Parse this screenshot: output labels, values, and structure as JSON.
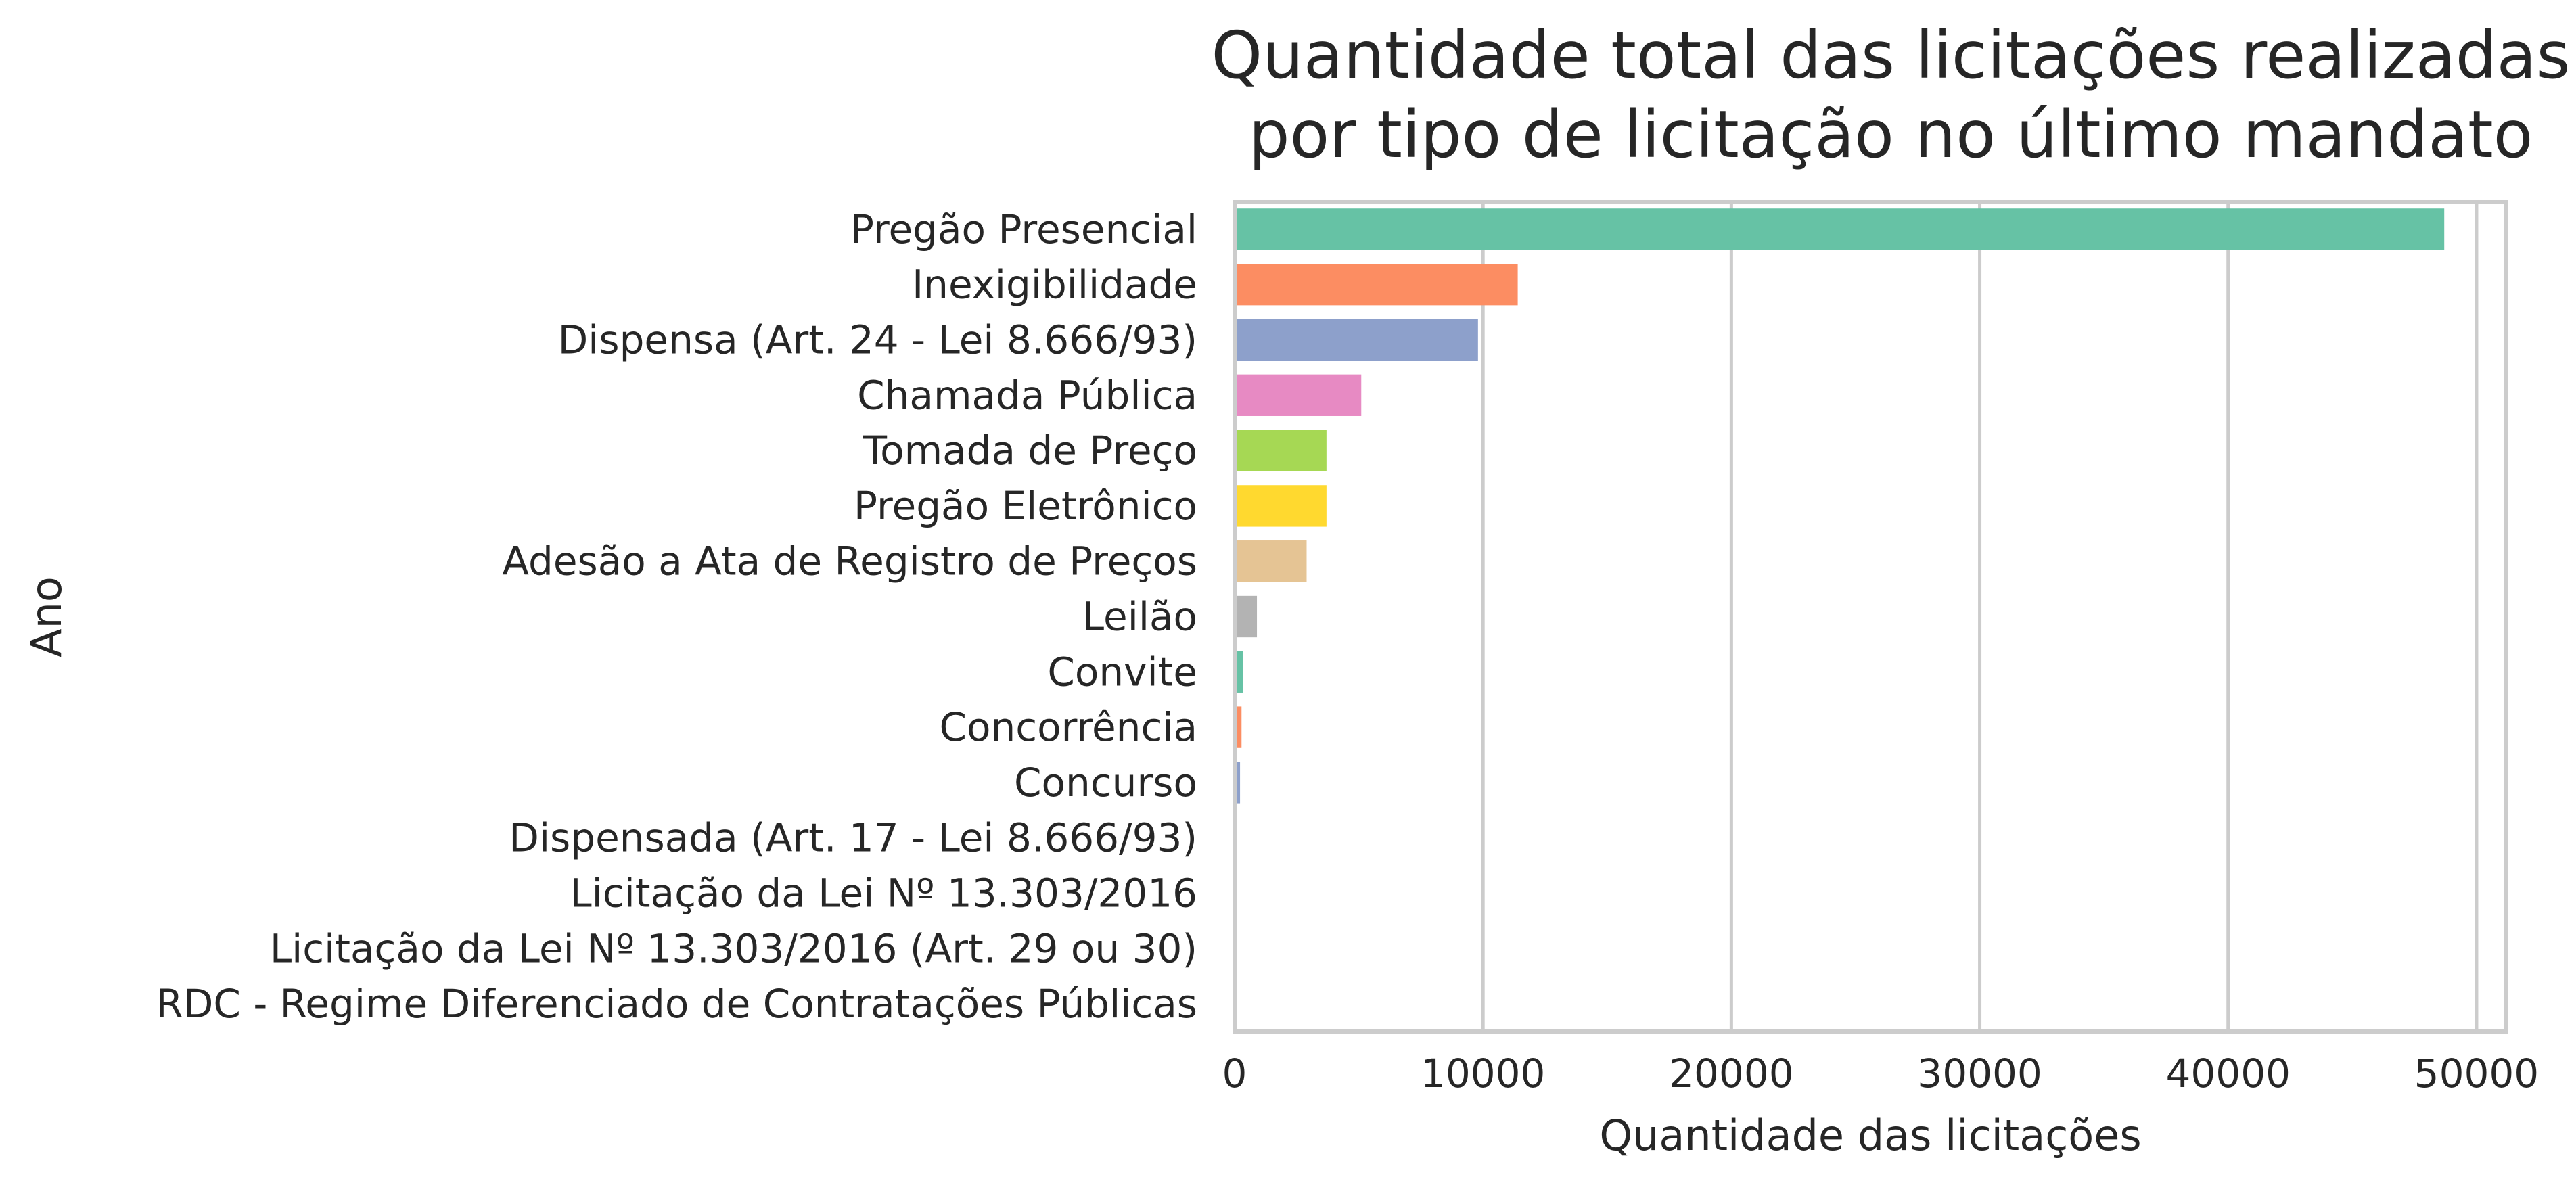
{
  "chart_data": {
    "type": "bar",
    "orientation": "horizontal",
    "title_lines": [
      "Quantidade total das licitações realizadas",
      "por tipo de licitação no último mandato"
    ],
    "xlabel": "Quantidade das licitações",
    "ylabel": "Ano",
    "xlim": [
      0,
      51200
    ],
    "xticks": [
      0,
      10000,
      20000,
      30000,
      40000,
      50000
    ],
    "xtick_labels": [
      "0",
      "10000",
      "20000",
      "30000",
      "40000",
      "50000"
    ],
    "grid": "vertical",
    "categories": [
      "Pregão Presencial",
      "Inexigibilidade",
      "Dispensa (Art. 24 - Lei 8.666/93)",
      "Chamada Pública",
      "Tomada de Preço",
      "Pregão Eletrônico",
      "Adesão a Ata de Registro de Preços",
      "Leilão",
      "Convite",
      "Concorrência",
      "Concurso",
      "Dispensada (Art. 17 - Lei 8.666/93)",
      "Licitação da Lei Nº 13.303/2016",
      "Licitação da Lei Nº 13.303/2016 (Art. 29 ou 30)",
      "RDC - Regime Diferenciado de Contratações Públicas"
    ],
    "values": [
      48700,
      11400,
      9800,
      5100,
      3700,
      3700,
      2900,
      900,
      350,
      280,
      220,
      0,
      0,
      0,
      0
    ],
    "colors": [
      "#66c2a5",
      "#fc8d62",
      "#8da0cb",
      "#e78ac3",
      "#a6d854",
      "#ffd92f",
      "#e5c494",
      "#b3b3b3",
      "#66c2a5",
      "#fc8d62",
      "#8da0cb",
      "#e78ac3",
      "#a6d854",
      "#ffd92f",
      "#e5c494"
    ],
    "grid_color": "#cccccc",
    "spine_color": "#cccccc"
  }
}
